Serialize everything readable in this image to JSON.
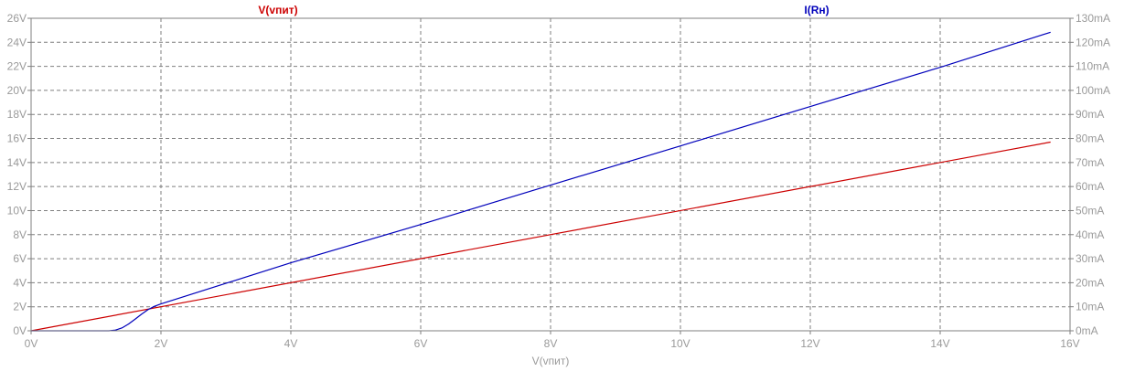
{
  "chart_data": {
    "type": "line",
    "xlabel": "V(vпит)",
    "x_ticks": [
      "0V",
      "2V",
      "4V",
      "6V",
      "8V",
      "10V",
      "12V",
      "14V",
      "16V"
    ],
    "xlim": [
      0,
      16
    ],
    "y_left_ticks": [
      "0V",
      "2V",
      "4V",
      "6V",
      "8V",
      "10V",
      "12V",
      "14V",
      "16V",
      "18V",
      "20V",
      "22V",
      "24V",
      "26V"
    ],
    "ylim_left": [
      0,
      26
    ],
    "y_right_ticks": [
      "0mA",
      "10mA",
      "20mA",
      "30mA",
      "40mA",
      "50mA",
      "60mA",
      "70mA",
      "80mA",
      "90mA",
      "100mA",
      "110mA",
      "120mA",
      "130mA"
    ],
    "ylim_right": [
      0,
      130
    ],
    "grid": true,
    "series": [
      {
        "name": "V(vпит)",
        "axis": "left",
        "color": "#cc0000",
        "x": [
          0,
          15.7
        ],
        "y": [
          0,
          15.7
        ]
      },
      {
        "name": "I(Rн)",
        "axis": "right",
        "color": "#0000bb",
        "x": [
          0,
          1.0,
          1.2,
          1.3,
          1.4,
          1.5,
          1.6,
          1.7,
          1.8,
          1.9,
          2.0,
          4.0,
          6.0,
          8.0,
          10.0,
          12.0,
          14.0,
          15.7
        ],
        "y": [
          0,
          0,
          0,
          0.3,
          1.2,
          2.8,
          4.8,
          6.9,
          8.8,
          10.2,
          11.2,
          28.3,
          44.2,
          60.6,
          76.9,
          93.3,
          109.6,
          124.2
        ]
      }
    ]
  },
  "colors": {
    "background": "#ffffff",
    "grid": "#7f7f7f",
    "tick_text": "#9a9a9a"
  }
}
